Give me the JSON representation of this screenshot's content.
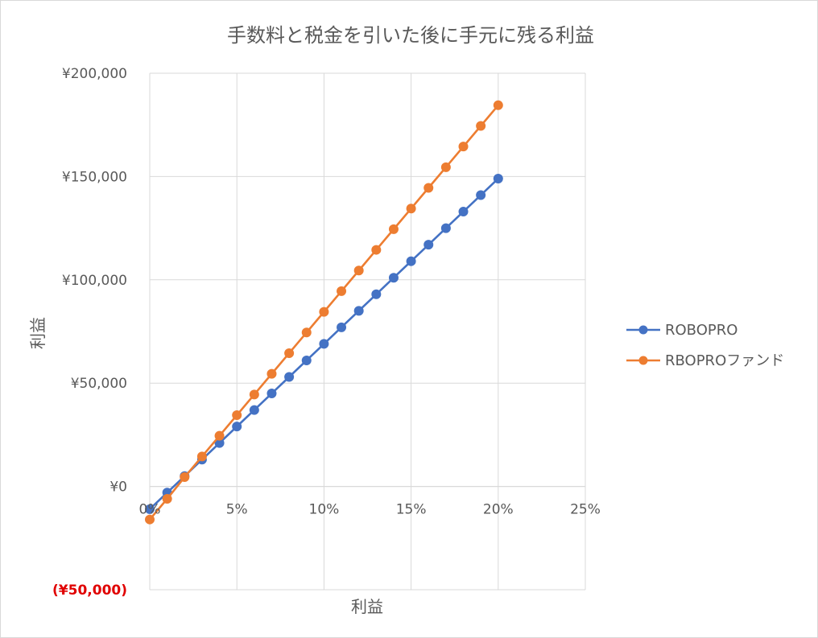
{
  "chart_data": {
    "type": "line",
    "title": "手数料と税金を引いた後に手元に残る利益",
    "xlabel": "利益",
    "ylabel": "利益",
    "xlim": [
      0,
      0.25
    ],
    "ylim": [
      -50000,
      200000
    ],
    "x_ticks": [
      0,
      0.05,
      0.1,
      0.15,
      0.2,
      0.25
    ],
    "x_tick_labels": [
      "0%",
      "5%",
      "10%",
      "15%",
      "20%",
      "25%"
    ],
    "y_ticks": [
      -50000,
      0,
      50000,
      100000,
      150000,
      200000
    ],
    "y_tick_labels": [
      "(¥50,000)",
      "¥0",
      "¥50,000",
      "¥100,000",
      "¥150,000",
      "¥200,000"
    ],
    "grid": true,
    "legend_position": "right",
    "x": [
      0,
      0.01,
      0.02,
      0.03,
      0.04,
      0.05,
      0.06,
      0.07,
      0.08,
      0.09,
      0.1,
      0.11,
      0.12,
      0.13,
      0.14,
      0.15,
      0.16,
      0.17,
      0.18,
      0.19,
      0.2
    ],
    "series": [
      {
        "name": "ROBOPRO",
        "color": "#4472c4",
        "values": [
          -11000,
          -3000,
          5000,
          13000,
          21000,
          29000,
          37000,
          45000,
          53000,
          61000,
          69000,
          77000,
          85000,
          93000,
          101000,
          109000,
          117000,
          125000,
          133000,
          141000,
          149000
        ]
      },
      {
        "name": "RBOPROファンド",
        "color": "#ed7d31",
        "values": [
          -16000,
          -6000,
          4500,
          14500,
          24500,
          34500,
          44500,
          54500,
          64500,
          74500,
          84500,
          94500,
          104500,
          114500,
          124500,
          134500,
          144500,
          154500,
          164500,
          174500,
          184500
        ]
      }
    ]
  }
}
